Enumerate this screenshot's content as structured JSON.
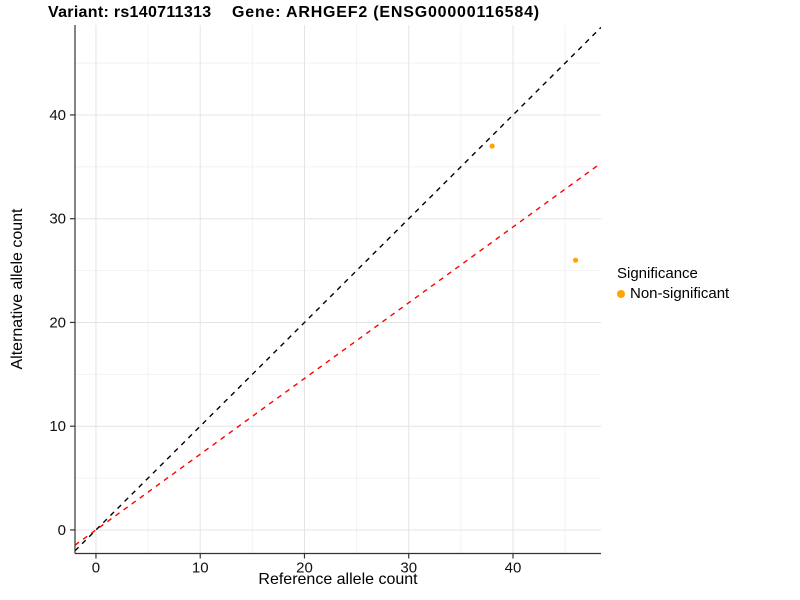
{
  "titles": {
    "left": "Variant: rs140711313",
    "right": "Gene: ARHGEF2 (ENSG00000116584)"
  },
  "legend": {
    "title": "Significance",
    "items": [
      {
        "label": "Non-significant",
        "color": "#FFA500"
      }
    ]
  },
  "chart_data": {
    "type": "scatter",
    "title": "Variant: rs140711313  Gene: ARHGEF2 (ENSG00000116584)",
    "xlabel": "Reference allele count",
    "ylabel": "Alternative allele count",
    "xlim": [
      -2.01,
      48.44
    ],
    "ylim": [
      -2.27,
      48.67
    ],
    "x_ticks": [
      0,
      10,
      20,
      30,
      40
    ],
    "y_ticks": [
      0,
      10,
      20,
      30,
      40
    ],
    "x_minor_ticks": [
      5,
      15,
      25,
      35,
      45
    ],
    "y_minor_ticks": [
      5,
      15,
      25,
      35,
      45
    ],
    "grid": "major+minor",
    "legend_position": "right",
    "series": [
      {
        "name": "Non-significant",
        "color": "#FFA500",
        "points": [
          {
            "x": 38,
            "y": 37
          },
          {
            "x": 46,
            "y": 26
          }
        ]
      }
    ],
    "lines": [
      {
        "name": "identity-line",
        "slope": 1,
        "intercept": 0,
        "color": "#000000",
        "style": "dashed"
      },
      {
        "name": "expected-ratio-line",
        "slope": 0.73,
        "intercept": 0,
        "color": "#FF0000",
        "style": "dashed"
      }
    ],
    "colors": {
      "grid_major": "#E4E4E4",
      "grid_minor": "#F2F2F2",
      "axis_line": "#333333",
      "tick_label": "#111111"
    }
  }
}
